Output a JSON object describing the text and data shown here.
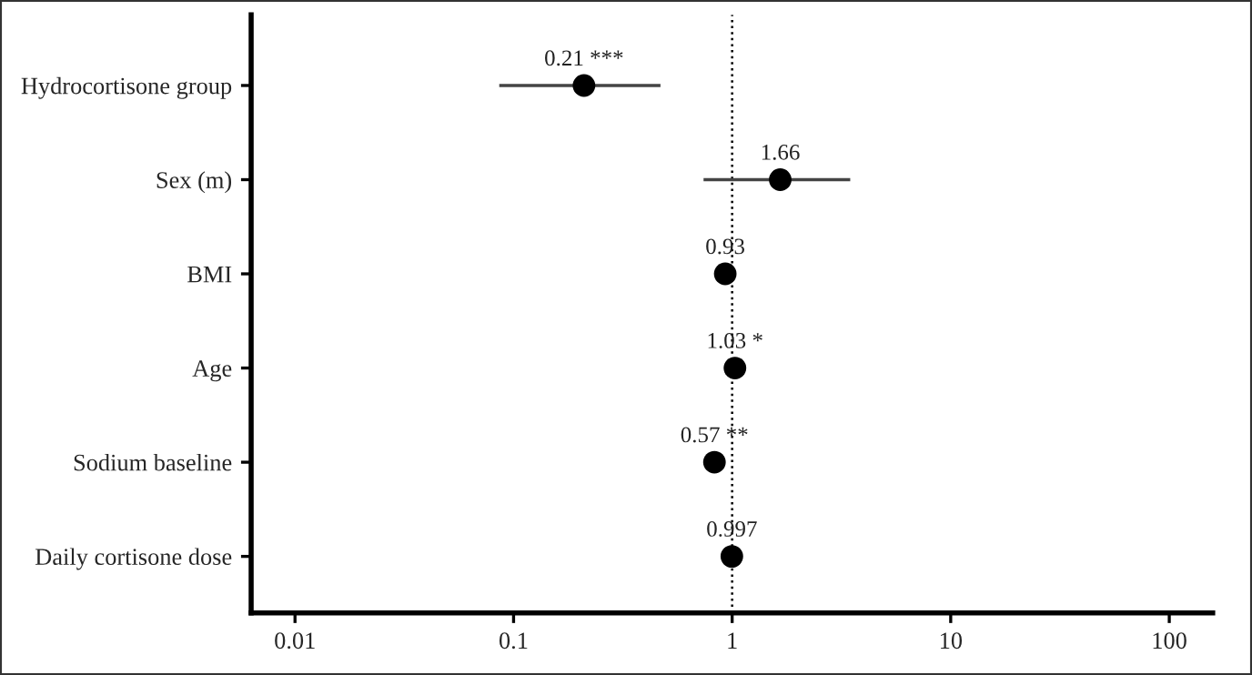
{
  "chart_data": {
    "type": "scatter",
    "orientation": "horizontal",
    "categories": [
      "Hydrocortisone group",
      "Sex (m)",
      "BMI",
      "Age",
      "Sodium baseline",
      "Daily cortisone dose"
    ],
    "values": [
      0.21,
      1.66,
      0.93,
      1.03,
      0.83,
      0.997
    ],
    "errors": [
      [
        0.086,
        0.47
      ],
      [
        0.74,
        3.47
      ],
      null,
      null,
      [
        0.77,
        0.87
      ],
      null
    ],
    "value_labels": [
      "0.21 ***",
      "1.66",
      "0.93",
      "1.03 *",
      null,
      "0.997"
    ],
    "annotations": [
      {
        "text": "0.57 **",
        "x": 0.83,
        "y": "Sodium baseline"
      }
    ],
    "colors": [
      "#000000",
      "#000000",
      "#000000",
      "#000000",
      "#000000",
      "#000000"
    ],
    "log": "x",
    "xlim": [
      0.0063,
      158
    ],
    "xticks": [
      0.01,
      0.1,
      1,
      10,
      100
    ],
    "ref_lines": [
      {
        "axis": "x",
        "value": 1,
        "line_style": "dotted",
        "color": "#000000"
      }
    ],
    "marker": "circle",
    "grid": false
  }
}
